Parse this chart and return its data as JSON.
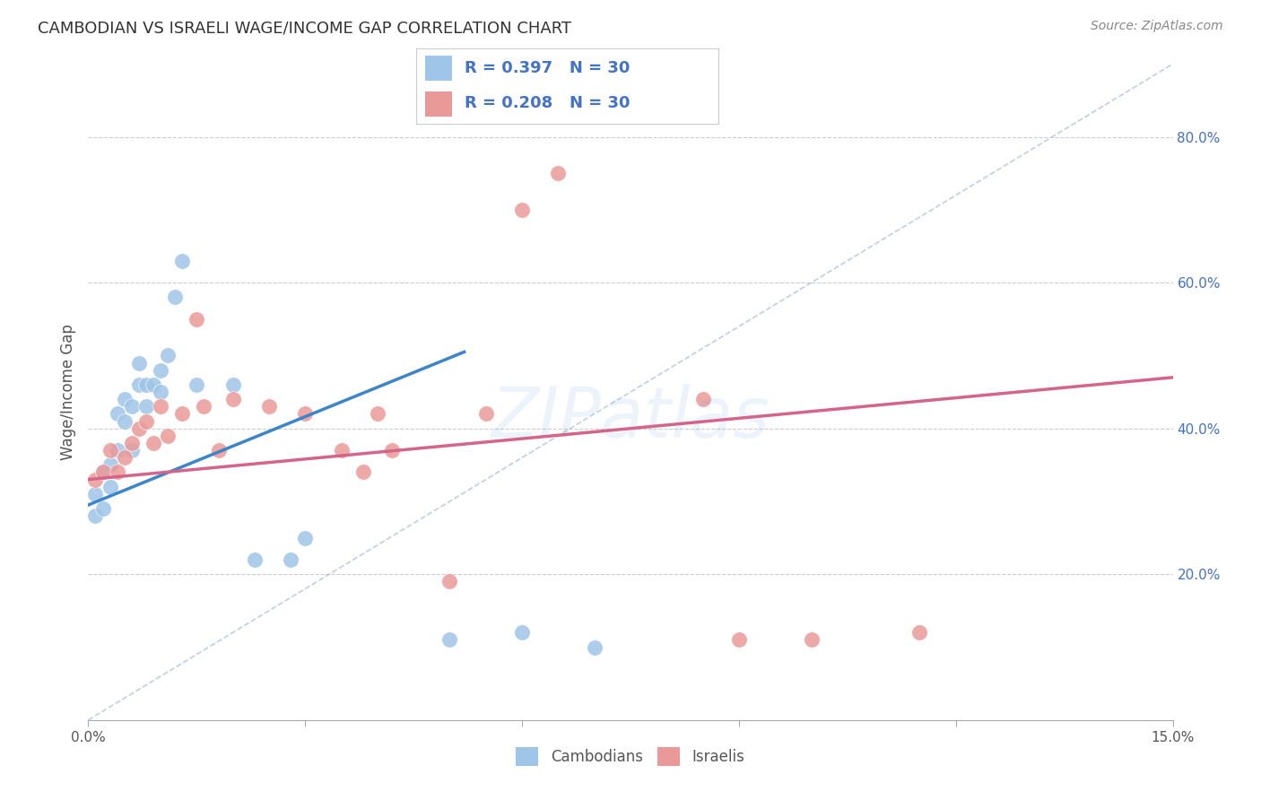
{
  "title": "CAMBODIAN VS ISRAELI WAGE/INCOME GAP CORRELATION CHART",
  "source": "Source: ZipAtlas.com",
  "ylabel": "Wage/Income Gap",
  "xlim": [
    0.0,
    0.15
  ],
  "ylim": [
    0.0,
    0.9
  ],
  "x_tick_positions": [
    0.0,
    0.03,
    0.06,
    0.09,
    0.12,
    0.15
  ],
  "x_tick_labels": [
    "0.0%",
    "",
    "",
    "",
    "",
    "15.0%"
  ],
  "right_yticks": [
    0.2,
    0.4,
    0.6,
    0.8
  ],
  "right_ytick_labels": [
    "20.0%",
    "40.0%",
    "60.0%",
    "80.0%"
  ],
  "blue_color": "#9fc5e8",
  "pink_color": "#ea9999",
  "blue_line_color": "#3d85c8",
  "pink_line_color": "#d5648a",
  "label_color": "#4472c4",
  "watermark": "ZIPatlas",
  "cambodian_x": [
    0.001,
    0.001,
    0.002,
    0.002,
    0.003,
    0.003,
    0.004,
    0.004,
    0.005,
    0.005,
    0.006,
    0.006,
    0.007,
    0.007,
    0.008,
    0.008,
    0.009,
    0.01,
    0.01,
    0.011,
    0.012,
    0.013,
    0.015,
    0.02,
    0.023,
    0.028,
    0.03,
    0.05,
    0.06,
    0.07
  ],
  "cambodian_y": [
    0.31,
    0.28,
    0.29,
    0.34,
    0.32,
    0.35,
    0.37,
    0.42,
    0.41,
    0.44,
    0.37,
    0.43,
    0.46,
    0.49,
    0.43,
    0.46,
    0.46,
    0.45,
    0.48,
    0.5,
    0.58,
    0.63,
    0.46,
    0.46,
    0.22,
    0.22,
    0.25,
    0.11,
    0.12,
    0.1
  ],
  "israeli_x": [
    0.001,
    0.002,
    0.003,
    0.004,
    0.005,
    0.006,
    0.007,
    0.008,
    0.009,
    0.01,
    0.011,
    0.013,
    0.015,
    0.016,
    0.018,
    0.02,
    0.025,
    0.03,
    0.035,
    0.038,
    0.04,
    0.042,
    0.05,
    0.055,
    0.06,
    0.065,
    0.085,
    0.09,
    0.1,
    0.115
  ],
  "israeli_y": [
    0.33,
    0.34,
    0.37,
    0.34,
    0.36,
    0.38,
    0.4,
    0.41,
    0.38,
    0.43,
    0.39,
    0.42,
    0.55,
    0.43,
    0.37,
    0.44,
    0.43,
    0.42,
    0.37,
    0.34,
    0.42,
    0.37,
    0.19,
    0.42,
    0.7,
    0.75,
    0.44,
    0.11,
    0.11,
    0.12
  ],
  "blue_line_x0": 0.0,
  "blue_line_y0": 0.295,
  "blue_line_x1": 0.052,
  "blue_line_y1": 0.505,
  "pink_line_x0": 0.0,
  "pink_line_y0": 0.33,
  "pink_line_x1": 0.15,
  "pink_line_y1": 0.47,
  "dash_line_x0": 0.0,
  "dash_line_y0": 0.0,
  "dash_line_x1": 0.15,
  "dash_line_y1": 0.9
}
